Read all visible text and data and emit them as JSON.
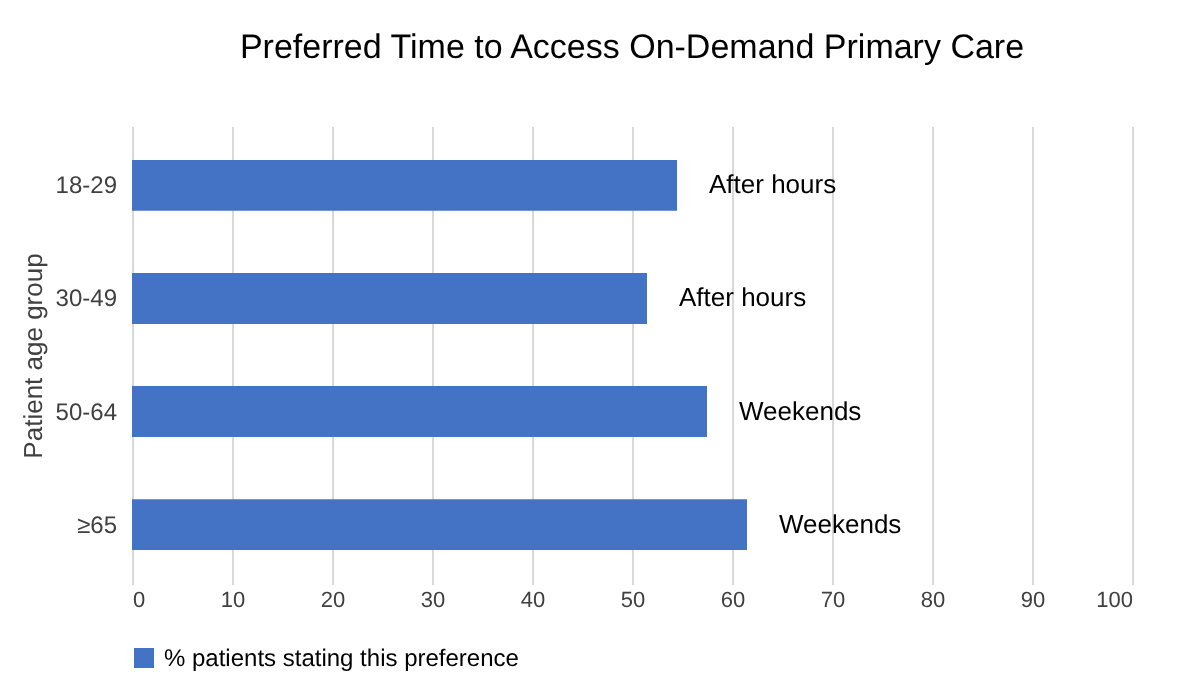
{
  "chart_data": {
    "type": "bar",
    "orientation": "horizontal",
    "title": "Preferred Time to Access On-Demand Primary Care",
    "ylabel": "Patient age group",
    "categories": [
      "18-29",
      "30-49",
      "50-64",
      "≥65"
    ],
    "series": [
      {
        "name": "% patients stating this preference",
        "color": "#4472c4",
        "values": [
          54.5,
          51.5,
          57.5,
          61.5
        ]
      }
    ],
    "xlim": [
      0,
      100
    ],
    "xticks": [
      0,
      10,
      20,
      30,
      40,
      50,
      60,
      70,
      80,
      90,
      100
    ],
    "grid": "x",
    "legend": "bottom",
    "annotations": [
      {
        "text": "After hours",
        "x": 54.5,
        "y": "18-29"
      },
      {
        "text": "After hours",
        "x": 51.5,
        "y": "30-49"
      },
      {
        "text": "Weekends",
        "x": 57.5,
        "y": "50-64"
      },
      {
        "text": "Weekends",
        "x": 61.5,
        "y": "≥65"
      }
    ]
  }
}
